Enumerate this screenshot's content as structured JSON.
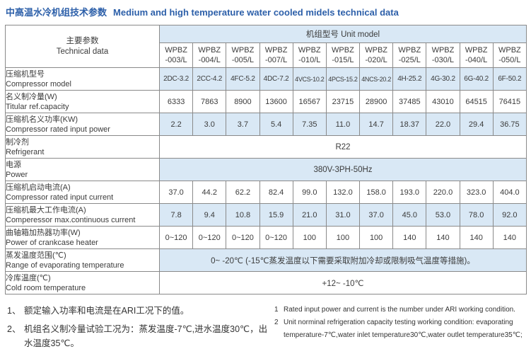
{
  "title": {
    "zh": "中高温水冷机组技术参数",
    "en": "Medium and high temperature water cooled midels technical data"
  },
  "colors": {
    "accent_blue": "#2c5fa9",
    "row_shade_blue": "#d9e8f5",
    "border_gray": "#8a8a8a"
  },
  "table": {
    "corner": {
      "zh": "主要参数",
      "en": "Technical data"
    },
    "band": "机组型号  Unit model",
    "models": [
      {
        "line1": "WPBZ",
        "line2": "-003/L"
      },
      {
        "line1": "WPBZ",
        "line2": "-004/L"
      },
      {
        "line1": "WPBZ",
        "line2": "-005/L"
      },
      {
        "line1": "WPBZ",
        "line2": "-007/L"
      },
      {
        "line1": "WPBZ",
        "line2": "-010/L"
      },
      {
        "line1": "WPBZ",
        "line2": "-015/L"
      },
      {
        "line1": "WPBZ",
        "line2": "-020/L"
      },
      {
        "line1": "WPBZ",
        "line2": "-025/L"
      },
      {
        "line1": "WPBZ",
        "line2": "-030/L"
      },
      {
        "line1": "WPBZ",
        "line2": "-040/L"
      },
      {
        "line1": "WPBZ",
        "line2": "-050/L"
      }
    ],
    "rows": [
      {
        "label_zh": "压缩机型号",
        "label_en": "Compressor model",
        "shaded": true,
        "values": [
          "2DC-3.2",
          "2CC-4.2",
          "4FC-5.2",
          "4DC-7.2",
          "4VCS-10.2",
          "4PCS-15.2",
          "4NCS-20.2",
          "4H-25.2",
          "4G-30.2",
          "6G-40.2",
          "6F-50.2"
        ]
      },
      {
        "label_zh": "名义制冷量(W)",
        "label_en": "Titular ref.capacity",
        "shaded": false,
        "values": [
          "6333",
          "7863",
          "8900",
          "13600",
          "16567",
          "23715",
          "28900",
          "37485",
          "43010",
          "64515",
          "76415"
        ]
      },
      {
        "label_zh": "压缩机名义功率(KW)",
        "label_en": "Compressor rated input power",
        "shaded": true,
        "values": [
          "2.2",
          "3.0",
          "3.7",
          "5.4",
          "7.35",
          "11.0",
          "14.7",
          "18.37",
          "22.0",
          "29.4",
          "36.75"
        ]
      },
      {
        "label_zh": "制冷剂",
        "label_en": "Refrigerant",
        "shaded": false,
        "span": "R22"
      },
      {
        "label_zh": "电源",
        "label_en": "Power",
        "shaded": true,
        "span": "380V-3PH-50Hz"
      },
      {
        "label_zh": "压缩机启动电流(A)",
        "label_en": "Compressor rated input current",
        "shaded": false,
        "values": [
          "37.0",
          "44.2",
          "62.2",
          "82.4",
          "99.0",
          "132.0",
          "158.0",
          "193.0",
          "220.0",
          "323.0",
          "404.0"
        ]
      },
      {
        "label_zh": "压缩机最大工作电流(A)",
        "label_en": "Comperessor max.continuous current",
        "shaded": true,
        "values": [
          "7.8",
          "9.4",
          "10.8",
          "15.9",
          "21.0",
          "31.0",
          "37.0",
          "45.0",
          "53.0",
          "78.0",
          "92.0"
        ]
      },
      {
        "label_zh": "曲轴箱加热器功率(W)",
        "label_en": "Power of crankcase heater",
        "shaded": false,
        "values": [
          "0~120",
          "0~120",
          "0~120",
          "0~120",
          "100",
          "100",
          "100",
          "140",
          "140",
          "140",
          "140"
        ]
      },
      {
        "label_zh": "蒸发温度范围(℃)",
        "label_en": "Range of evaporating temperature",
        "shaded": true,
        "span": "0~ -20℃ (-15℃蒸发温度以下需要采取附加冷却或限制吸气温度等措施)。"
      },
      {
        "label_zh": "冷库温度(℃)",
        "label_en": "Cold room temperature",
        "shaded": false,
        "span": "+12~ -10℃"
      }
    ]
  },
  "notes_left": [
    {
      "num": "1、",
      "text": "额定输入功率和电流是在ARI工况下的值。"
    },
    {
      "num": "2、",
      "text": "机组名义制冷量试验工况为：蒸发温度-7℃,进水温度30℃，出水温度35℃。"
    }
  ],
  "notes_right": [
    {
      "num": "1",
      "text": "Rated input power and current is the number under ARI working condition."
    },
    {
      "num": "2",
      "text": "Unit norminal refrigeration capacity testing working condition: evaporating temperature-7℃,water inlet temperature30℃,water outlet temperature35℃;"
    }
  ]
}
